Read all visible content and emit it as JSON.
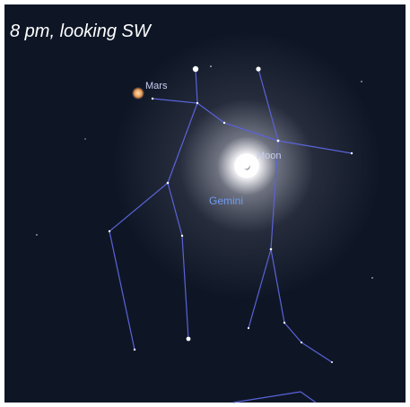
{
  "caption": "8 pm, looking SW",
  "labels": {
    "mars": "Mars",
    "moon": "Moon",
    "constellation": "Gemini"
  }
}
